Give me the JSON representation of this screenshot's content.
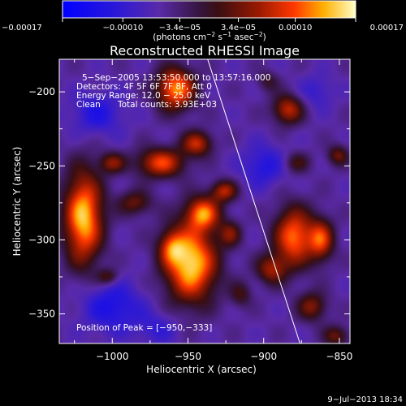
{
  "chart_data": {
    "type": "heatmap",
    "title": "Reconstructed RHESSI Image",
    "xlabel": "Heliocentric X (arcsec)",
    "ylabel": "Heliocentric Y (arcsec)",
    "xlim": [
      -1035,
      -843
    ],
    "ylim": [
      -370,
      -178
    ],
    "x_ticks": [
      -1000,
      -950,
      -900,
      -850
    ],
    "x_tick_labels": [
      "−1000",
      "−950",
      "−900",
      "−850"
    ],
    "y_ticks": [
      -200,
      -250,
      -300,
      -350
    ],
    "y_tick_labels": [
      "−200",
      "−250",
      "−300",
      "−350"
    ],
    "colorbar": {
      "range": [
        -0.00017,
        0.00017
      ],
      "ticks": [
        -0.00017,
        -0.0001,
        -3.4e-05,
        3.4e-05,
        0.0001,
        0.00017
      ],
      "tick_labels": [
        "−0.00017",
        "−0.00010",
        "−3.4e−05",
        "3.4e−05",
        "0.00010",
        "0.00017"
      ],
      "units_prefix": "(photons cm",
      "units_sup1": "−2",
      "units_mid1": " s",
      "units_sup2": "−1",
      "units_mid2": " asec",
      "units_sup3": "−2",
      "units_suffix": ")"
    },
    "annotations": {
      "time_range": "5−Sep−2005 13:53:50.000 to 13:57:16.000",
      "detectors": "Detectors: 4F 5F 6F 7F 8F, Att 0",
      "energy": "Energy Range: 12.0 − 25.0 keV",
      "clean": "Clean",
      "counts": "Total counts: 3.93E+03",
      "peak": "Position of Peak = [−950,−333]"
    },
    "limb_line": [
      [
        -937,
        -178
      ],
      [
        -876,
        -370
      ]
    ],
    "blobs": [
      {
        "x": -1019,
        "y": -285,
        "amp": 0.95,
        "sx": 9,
        "sy": 22
      },
      {
        "x": -1000,
        "y": -248,
        "amp": 0.45,
        "sx": 6,
        "sy": 5
      },
      {
        "x": -1003,
        "y": -325,
        "amp": 0.35,
        "sx": 5,
        "sy": 4
      },
      {
        "x": -985,
        "y": -275,
        "amp": 0.4,
        "sx": 8,
        "sy": 6
      },
      {
        "x": -968,
        "y": -248,
        "amp": 0.7,
        "sx": 11,
        "sy": 7
      },
      {
        "x": -958,
        "y": -198,
        "amp": 0.85,
        "sx": 9,
        "sy": 10
      },
      {
        "x": -944,
        "y": -235,
        "amp": 0.6,
        "sx": 7,
        "sy": 6
      },
      {
        "x": -940,
        "y": -282,
        "amp": 0.75,
        "sx": 8,
        "sy": 8
      },
      {
        "x": -948,
        "y": -316,
        "amp": 1.0,
        "sx": 12,
        "sy": 18
      },
      {
        "x": -961,
        "y": -305,
        "amp": 0.45,
        "sx": 6,
        "sy": 8
      },
      {
        "x": -926,
        "y": -267,
        "amp": 0.55,
        "sx": 6,
        "sy": 5
      },
      {
        "x": -922,
        "y": -296,
        "amp": 0.4,
        "sx": 5,
        "sy": 6
      },
      {
        "x": -915,
        "y": -337,
        "amp": 0.3,
        "sx": 5,
        "sy": 6
      },
      {
        "x": -884,
        "y": -212,
        "amp": 0.6,
        "sx": 7,
        "sy": 7
      },
      {
        "x": -878,
        "y": -248,
        "amp": 0.3,
        "sx": 6,
        "sy": 5
      },
      {
        "x": -880,
        "y": -298,
        "amp": 0.8,
        "sx": 9,
        "sy": 14
      },
      {
        "x": -895,
        "y": -320,
        "amp": 0.5,
        "sx": 7,
        "sy": 7
      },
      {
        "x": -862,
        "y": -300,
        "amp": 0.65,
        "sx": 6,
        "sy": 10
      },
      {
        "x": -868,
        "y": -345,
        "amp": 0.45,
        "sx": 7,
        "sy": 7
      },
      {
        "x": -851,
        "y": -243,
        "amp": 0.4,
        "sx": 5,
        "sy": 5
      },
      {
        "x": -852,
        "y": -365,
        "amp": 0.4,
        "sx": 6,
        "sy": 5
      },
      {
        "x": -897,
        "y": -193,
        "amp": 0.25,
        "sx": 5,
        "sy": 5
      },
      {
        "x": -1010,
        "y": -215,
        "amp": -0.3,
        "sx": 12,
        "sy": 10
      },
      {
        "x": -1000,
        "y": -345,
        "amp": -0.35,
        "sx": 14,
        "sy": 12
      },
      {
        "x": -900,
        "y": -250,
        "amp": -0.3,
        "sx": 10,
        "sy": 10
      },
      {
        "x": -970,
        "y": -360,
        "amp": -0.2,
        "sx": 10,
        "sy": 8
      },
      {
        "x": -865,
        "y": -200,
        "amp": -0.2,
        "sx": 8,
        "sy": 8
      }
    ]
  },
  "footer": {
    "date": "9−Jul−2013 18:34"
  }
}
